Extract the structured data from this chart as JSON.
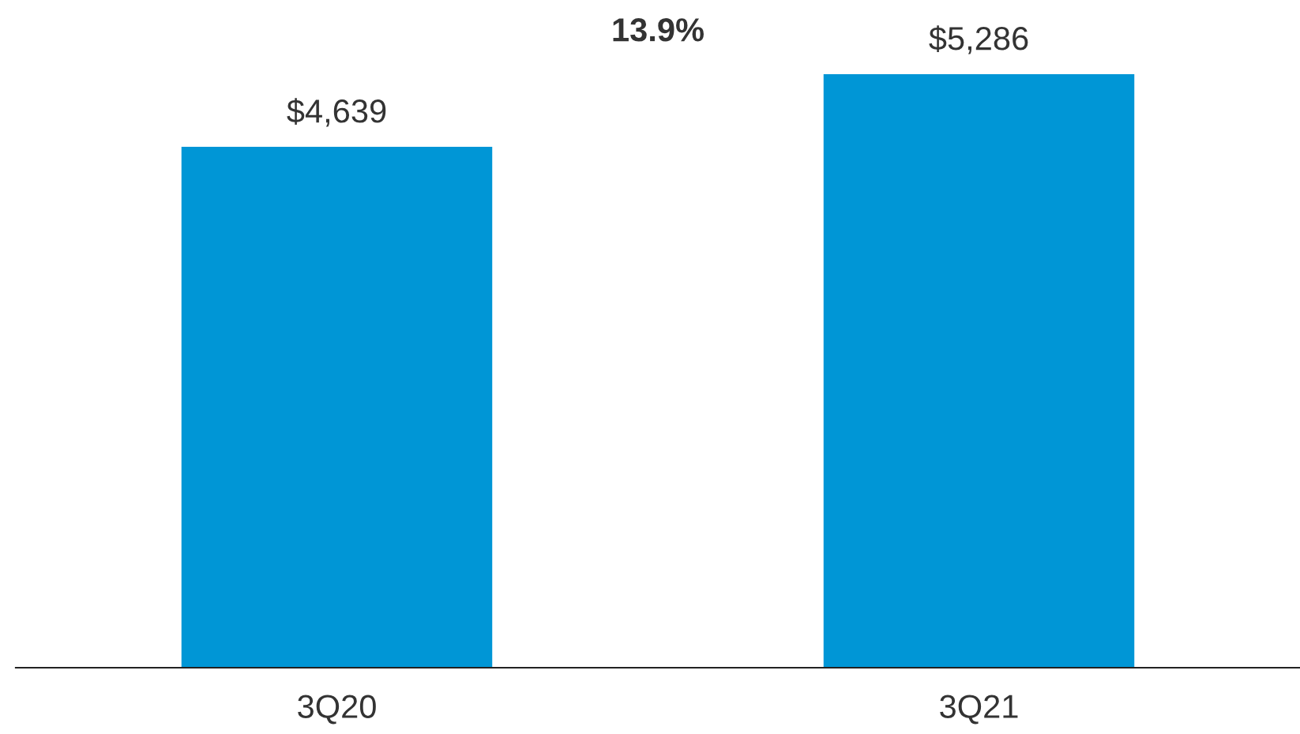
{
  "chart_data": {
    "type": "bar",
    "categories": [
      "3Q20",
      "3Q21"
    ],
    "values": [
      4639,
      5286
    ],
    "color": "#0096d6",
    "value_labels": [
      "$4,639",
      "$5,286"
    ],
    "annotations": [
      "13.9%"
    ],
    "grid": false,
    "legend": false
  }
}
